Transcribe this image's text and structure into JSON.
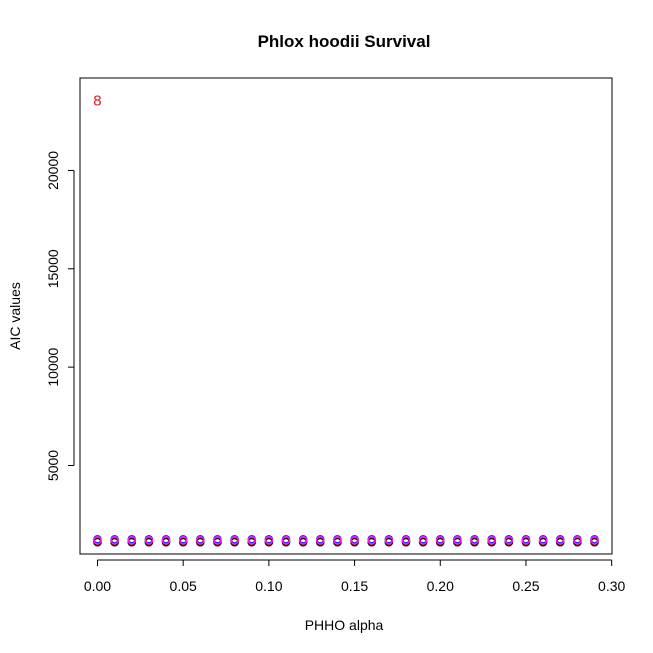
{
  "chart_data": {
    "type": "scatter",
    "title": "Phlox hoodii Survival",
    "xlabel": "PHHO alpha",
    "ylabel": "AIC values",
    "xlim": [
      -0.0102,
      0.3002
    ],
    "ylim": [
      500,
      24700
    ],
    "xticks": [
      0.0,
      0.05,
      0.1,
      0.15,
      0.2,
      0.25,
      0.3
    ],
    "xtick_labels": [
      "0.00",
      "0.05",
      "0.10",
      "0.15",
      "0.20",
      "0.25",
      "0.30"
    ],
    "yticks": [
      5000,
      10000,
      15000,
      20000
    ],
    "ytick_labels": [
      "5000",
      "10000",
      "15000",
      "20000"
    ],
    "grid": false,
    "legend": "none",
    "x": [
      0.0,
      0.01,
      0.02,
      0.03,
      0.04,
      0.05,
      0.06,
      0.07,
      0.08,
      0.09,
      0.1,
      0.11,
      0.12,
      0.13,
      0.14,
      0.15,
      0.16,
      0.17,
      0.18,
      0.19,
      0.2,
      0.21,
      0.22,
      0.23,
      0.24,
      0.25,
      0.26,
      0.27,
      0.28,
      0.29
    ],
    "series": [
      {
        "color": "#1a1aff",
        "values": [
          1250,
          1250,
          1250,
          1250,
          1250,
          1250,
          1250,
          1250,
          1250,
          1250,
          1250,
          1250,
          1250,
          1250,
          1250,
          1250,
          1250,
          1250,
          1250,
          1250,
          1250,
          1250,
          1250,
          1250,
          1250,
          1250,
          1250,
          1250,
          1250,
          1250
        ]
      },
      {
        "color": "#ff1a1a",
        "values": [
          1150,
          1150,
          1150,
          1150,
          1150,
          1150,
          1150,
          1150,
          1150,
          1150,
          1150,
          1150,
          1150,
          1150,
          1150,
          1150,
          1150,
          1150,
          1150,
          1150,
          1150,
          1150,
          1150,
          1150,
          1150,
          1150,
          1150,
          1150,
          1150,
          1150
        ]
      },
      {
        "color": "#111111",
        "values": [
          1100,
          1100,
          1100,
          1100,
          1100,
          1100,
          1100,
          1100,
          1100,
          1100,
          1100,
          1100,
          1100,
          1100,
          1100,
          1100,
          1100,
          1100,
          1100,
          1100,
          1100,
          1100,
          1100,
          1100,
          1100,
          1100,
          1100,
          1100,
          1100,
          1100
        ]
      },
      {
        "color": "#ff1aff",
        "values": [
          1200,
          1200,
          1200,
          1200,
          1200,
          1200,
          1200,
          1200,
          1200,
          1200,
          1200,
          1200,
          1200,
          1200,
          1200,
          1200,
          1200,
          1200,
          1200,
          1200,
          1200,
          1200,
          1200,
          1200,
          1200,
          1200,
          1200,
          1200,
          1200,
          1200
        ]
      }
    ],
    "annotations": [
      {
        "text": "8",
        "x": 0.0,
        "y": 23300,
        "color": "#e01818"
      }
    ]
  }
}
